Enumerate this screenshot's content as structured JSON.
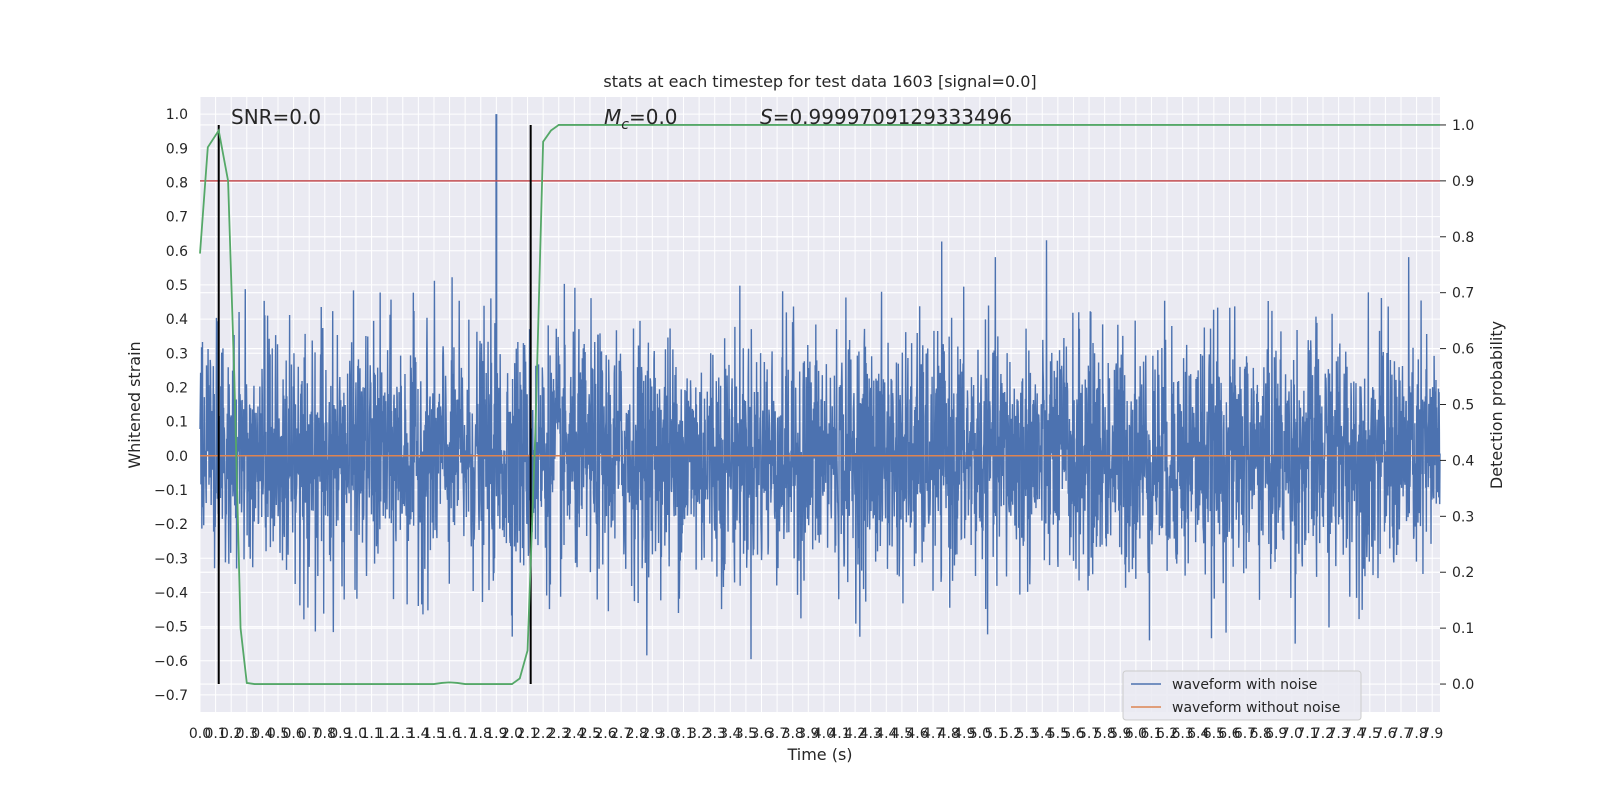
{
  "chart_data": {
    "type": "line",
    "title": "stats at each timestep for test data 1603 [signal=0.0]",
    "xlabel": "Time (s)",
    "ylabel_left": "Whitened strain",
    "ylabel_right": "Detection probability",
    "annotations": {
      "snr": "SNR=0.0",
      "mc_symbol": "M",
      "mc_sub": "c",
      "mc_value": "=0.0",
      "s_symbol": "S",
      "s_value": "=0.9999709129333496"
    },
    "xlim": [
      0.0,
      7.95
    ],
    "ylim_left": [
      -0.75,
      1.05
    ],
    "ylim_right": [
      -0.05,
      1.05
    ],
    "x_ticks": [
      "0.0",
      "0.1",
      "0.2",
      "0.3",
      "0.4",
      "0.5",
      "0.6",
      "0.7",
      "0.8",
      "0.9",
      "1.0",
      "1.1",
      "1.2",
      "1.3",
      "1.4",
      "1.5",
      "1.6",
      "1.7",
      "1.8",
      "1.9",
      "2.0",
      "2.1",
      "2.2",
      "2.3",
      "2.4",
      "2.5",
      "2.6",
      "2.7",
      "2.8",
      "2.9",
      "3.0",
      "3.1",
      "3.2",
      "3.3",
      "3.4",
      "3.5",
      "3.6",
      "3.7",
      "3.8",
      "3.9",
      "4.0",
      "4.1",
      "4.2",
      "4.3",
      "4.4",
      "4.5",
      "4.6",
      "4.7",
      "4.8",
      "4.9",
      "5.0",
      "5.1",
      "5.2",
      "5.3",
      "5.4",
      "5.5",
      "5.6",
      "5.7",
      "5.8",
      "5.9",
      "6.0",
      "6.1",
      "6.2",
      "6.3",
      "6.4",
      "6.5",
      "6.6",
      "6.7",
      "6.8",
      "6.9",
      "7.0",
      "7.1",
      "7.2",
      "7.3",
      "7.4",
      "7.5",
      "7.6",
      "7.7",
      "7.8",
      "7.9"
    ],
    "y_ticks_left": [
      "−0.7",
      "−0.6",
      "−0.5",
      "−0.4",
      "−0.3",
      "−0.2",
      "−0.1",
      "0.0",
      "0.1",
      "0.2",
      "0.3",
      "0.4",
      "0.5",
      "0.6",
      "0.7",
      "0.8",
      "0.9",
      "1.0"
    ],
    "y_ticks_right": [
      "0.0",
      "0.1",
      "0.2",
      "0.3",
      "0.4",
      "0.5",
      "0.6",
      "0.7",
      "0.8",
      "0.9",
      "1.0"
    ],
    "series": [
      {
        "name": "waveform with noise",
        "color": "#4c72b0",
        "kind": "noise",
        "typical_amplitude": 0.32,
        "peak_max": 1.0,
        "peak_min": -0.67
      },
      {
        "name": "waveform without noise",
        "color": "#dd8452",
        "values": [
          0.0,
          0.0
        ]
      },
      {
        "name": "",
        "color": "#55a868",
        "axis": "right",
        "x": [
          0.0,
          0.05,
          0.12,
          0.18,
          0.22,
          0.26,
          0.3,
          0.35,
          0.4,
          1.5,
          1.55,
          1.6,
          1.65,
          1.7,
          2.0,
          2.05,
          2.1,
          2.15,
          2.2,
          2.25,
          2.3,
          2.4,
          7.95
        ],
        "y": [
          0.77,
          0.96,
          0.99,
          0.9,
          0.55,
          0.1,
          0.002,
          0.0,
          0.0,
          0.0,
          0.002,
          0.003,
          0.002,
          0.0,
          0.0,
          0.01,
          0.06,
          0.45,
          0.97,
          0.99,
          1.0,
          1.0,
          1.0
        ]
      }
    ],
    "hlines": [
      {
        "axis": "right",
        "y": 0.9,
        "color": "#c44e52"
      }
    ],
    "vlines": [
      {
        "x": 0.12,
        "color": "#000000"
      },
      {
        "x": 2.12,
        "color": "#000000"
      }
    ],
    "legend": {
      "position": "lower-right",
      "entries": [
        "waveform with noise",
        "waveform without noise"
      ]
    },
    "grid": true,
    "background": "#eaeaf2"
  }
}
